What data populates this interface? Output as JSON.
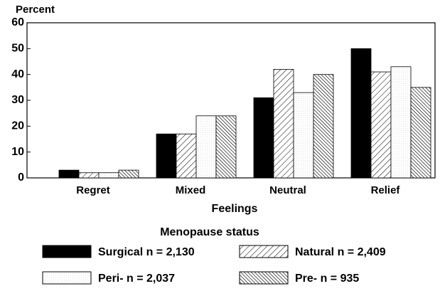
{
  "chart_data": {
    "type": "bar",
    "y_label": "Percent",
    "x_label": "Feelings",
    "legend_title": "Menopause status",
    "categories": [
      "Regret",
      "Mixed",
      "Neutral",
      "Relief"
    ],
    "series": [
      {
        "name": "Surgical n = 2,130",
        "color": "#000000",
        "pattern": "solid",
        "values": [
          3,
          17,
          31,
          50
        ]
      },
      {
        "name": "Natural n = 2,409",
        "color": "#000000",
        "pattern": "hatch",
        "values": [
          2,
          17,
          42,
          41
        ]
      },
      {
        "name": "Peri- n = 2,037",
        "color": "#000000",
        "pattern": "dots",
        "values": [
          2,
          24,
          33,
          43
        ]
      },
      {
        "name": "Pre- n = 935",
        "color": "#000000",
        "pattern": "dense-hatch",
        "values": [
          3,
          24,
          40,
          35
        ]
      }
    ],
    "ylim": [
      0,
      60
    ],
    "yticks": [
      0,
      10,
      20,
      30,
      40,
      50,
      60
    ]
  }
}
